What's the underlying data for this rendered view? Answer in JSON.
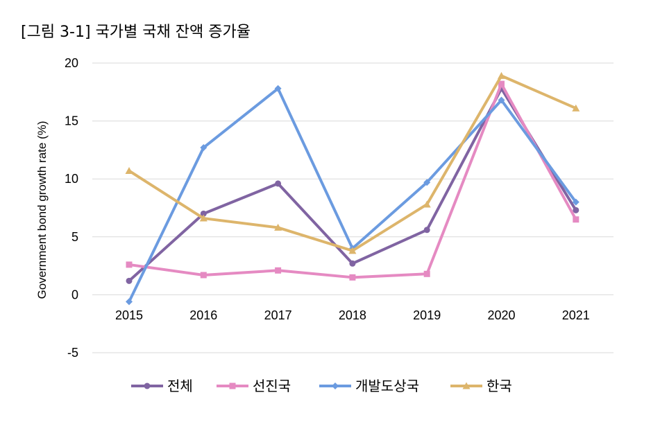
{
  "chart_data": {
    "type": "line",
    "title": "[그림 3-1] 국가별 국채 잔액 증가율",
    "ylabel": "Government bond growth rate (%)",
    "xlabel": "",
    "categories": [
      "2015",
      "2016",
      "2017",
      "2018",
      "2019",
      "2020",
      "2021"
    ],
    "ylim": [
      -5,
      20
    ],
    "yticks": [
      -5,
      0,
      5,
      10,
      15,
      20
    ],
    "grid": true,
    "legend_position": "bottom",
    "series": [
      {
        "name": "전체",
        "color": "#8064a2",
        "marker": "circle",
        "values": [
          1.2,
          7.0,
          9.6,
          2.7,
          5.6,
          17.8,
          7.3
        ]
      },
      {
        "name": "선진국",
        "color": "#e58ac2",
        "marker": "square",
        "values": [
          2.6,
          1.7,
          2.1,
          1.5,
          1.8,
          18.2,
          6.5
        ]
      },
      {
        "name": "개발도상국",
        "color": "#6b9be0",
        "marker": "diamond",
        "values": [
          -0.6,
          12.7,
          17.8,
          4.0,
          9.7,
          16.8,
          8.0
        ]
      },
      {
        "name": "한국",
        "color": "#ddb56b",
        "marker": "triangle",
        "values": [
          10.7,
          6.6,
          5.8,
          3.8,
          7.8,
          18.9,
          16.1
        ]
      }
    ]
  }
}
